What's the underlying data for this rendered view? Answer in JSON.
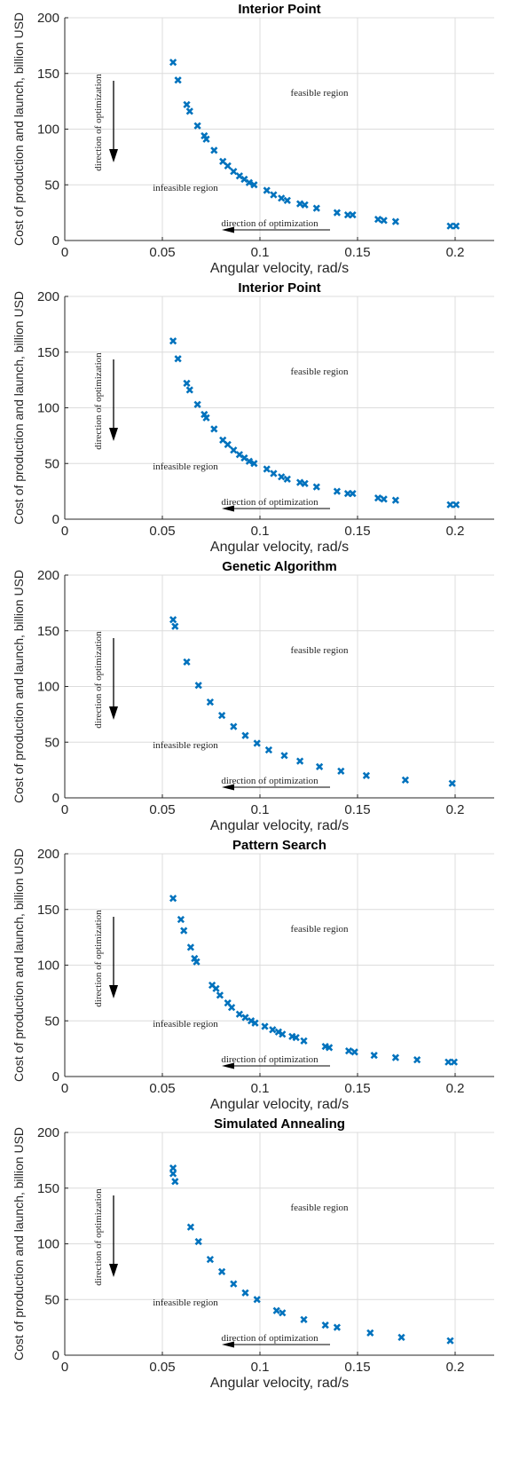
{
  "colors": {
    "marker": "#0072BD",
    "grid": "#dcdcdc",
    "axis": "#262626"
  },
  "chart_data": [
    {
      "type": "scatter",
      "title": "Interior Point",
      "xlabel": "Angular velocity, rad/s",
      "ylabel": "Cost of production and launch, billion USD",
      "xlim": [
        0,
        0.22
      ],
      "ylim": [
        0,
        200
      ],
      "xticks": [
        "0",
        "0.05",
        "0.1",
        "0.15",
        "0.2"
      ],
      "yticks": [
        "0",
        "50",
        "100",
        "150",
        "200"
      ],
      "grid": true,
      "marker": "x",
      "annotations": [
        "feasible region",
        "infeasible region",
        "direction of optimization",
        "direction of optimization"
      ],
      "points": [
        [
          0.0555,
          160
        ],
        [
          0.058,
          144
        ],
        [
          0.0625,
          122
        ],
        [
          0.064,
          116
        ],
        [
          0.068,
          103
        ],
        [
          0.0715,
          94
        ],
        [
          0.0725,
          91
        ],
        [
          0.0765,
          81
        ],
        [
          0.081,
          71
        ],
        [
          0.0835,
          67
        ],
        [
          0.0865,
          62
        ],
        [
          0.0895,
          58
        ],
        [
          0.092,
          55
        ],
        [
          0.0945,
          52
        ],
        [
          0.097,
          50
        ],
        [
          0.1035,
          45
        ],
        [
          0.107,
          41
        ],
        [
          0.111,
          38
        ],
        [
          0.114,
          36
        ],
        [
          0.1205,
          33
        ],
        [
          0.123,
          32
        ],
        [
          0.129,
          29
        ],
        [
          0.1395,
          25
        ],
        [
          0.145,
          23
        ],
        [
          0.1475,
          23
        ],
        [
          0.1605,
          19
        ],
        [
          0.1635,
          18
        ],
        [
          0.1695,
          17
        ],
        [
          0.1975,
          13
        ],
        [
          0.2005,
          13
        ]
      ]
    },
    {
      "type": "scatter",
      "title": "Interior Point",
      "xlabel": "Angular velocity, rad/s",
      "ylabel": "Cost of production and launch, billion USD",
      "xlim": [
        0,
        0.22
      ],
      "ylim": [
        0,
        200
      ],
      "xticks": [
        "0",
        "0.05",
        "0.1",
        "0.15",
        "0.2"
      ],
      "yticks": [
        "0",
        "50",
        "100",
        "150",
        "200"
      ],
      "grid": true,
      "marker": "x",
      "annotations": [
        "feasible region",
        "infeasible region",
        "direction of optimization",
        "direction of optimization"
      ],
      "points": [
        [
          0.0555,
          160
        ],
        [
          0.058,
          144
        ],
        [
          0.0625,
          122
        ],
        [
          0.064,
          116
        ],
        [
          0.068,
          103
        ],
        [
          0.0715,
          94
        ],
        [
          0.0725,
          91
        ],
        [
          0.0765,
          81
        ],
        [
          0.081,
          71
        ],
        [
          0.0835,
          67
        ],
        [
          0.0865,
          62
        ],
        [
          0.0895,
          58
        ],
        [
          0.092,
          55
        ],
        [
          0.0945,
          52
        ],
        [
          0.097,
          50
        ],
        [
          0.1035,
          45
        ],
        [
          0.107,
          41
        ],
        [
          0.111,
          38
        ],
        [
          0.114,
          36
        ],
        [
          0.1205,
          33
        ],
        [
          0.123,
          32
        ],
        [
          0.129,
          29
        ],
        [
          0.1395,
          25
        ],
        [
          0.145,
          23
        ],
        [
          0.1475,
          23
        ],
        [
          0.1605,
          19
        ],
        [
          0.1635,
          18
        ],
        [
          0.1695,
          17
        ],
        [
          0.1975,
          13
        ],
        [
          0.2005,
          13
        ]
      ]
    },
    {
      "type": "scatter",
      "title": "Genetic Algorithm",
      "xlabel": "Angular velocity, rad/s",
      "ylabel": "Cost of production and launch, billion USD",
      "xlim": [
        0,
        0.22
      ],
      "ylim": [
        0,
        200
      ],
      "xticks": [
        "0",
        "0.05",
        "0.1",
        "0.15",
        "0.2"
      ],
      "yticks": [
        "0",
        "50",
        "100",
        "150",
        "200"
      ],
      "grid": true,
      "marker": "x",
      "annotations": [
        "feasible region",
        "infeasible region",
        "direction of optimization",
        "direction of optimization"
      ],
      "points": [
        [
          0.0555,
          160
        ],
        [
          0.0565,
          154
        ],
        [
          0.0625,
          122
        ],
        [
          0.0685,
          101
        ],
        [
          0.0745,
          86
        ],
        [
          0.0805,
          74
        ],
        [
          0.0865,
          64
        ],
        [
          0.0925,
          56
        ],
        [
          0.0985,
          49
        ],
        [
          0.1045,
          43
        ],
        [
          0.1125,
          38
        ],
        [
          0.1205,
          33
        ],
        [
          0.1305,
          28
        ],
        [
          0.1415,
          24
        ],
        [
          0.1545,
          20
        ],
        [
          0.1745,
          16
        ],
        [
          0.1985,
          13
        ]
      ]
    },
    {
      "type": "scatter",
      "title": "Pattern Search",
      "xlabel": "Angular velocity, rad/s",
      "ylabel": "Cost of production and launch, billion USD",
      "xlim": [
        0,
        0.22
      ],
      "ylim": [
        0,
        200
      ],
      "xticks": [
        "0",
        "0.05",
        "0.1",
        "0.15",
        "0.2"
      ],
      "yticks": [
        "0",
        "50",
        "100",
        "150",
        "200"
      ],
      "grid": true,
      "marker": "x",
      "annotations": [
        "feasible region",
        "infeasible region",
        "direction of optimization",
        "direction of optimization"
      ],
      "points": [
        [
          0.0555,
          160
        ],
        [
          0.0595,
          141
        ],
        [
          0.061,
          131
        ],
        [
          0.0645,
          116
        ],
        [
          0.0665,
          106
        ],
        [
          0.0675,
          103
        ],
        [
          0.0755,
          82
        ],
        [
          0.0775,
          79
        ],
        [
          0.0795,
          73
        ],
        [
          0.0835,
          66
        ],
        [
          0.0855,
          62
        ],
        [
          0.0895,
          56
        ],
        [
          0.0925,
          53
        ],
        [
          0.0955,
          50
        ],
        [
          0.0975,
          48
        ],
        [
          0.1025,
          45
        ],
        [
          0.1065,
          42
        ],
        [
          0.1095,
          40
        ],
        [
          0.1115,
          38
        ],
        [
          0.1165,
          36
        ],
        [
          0.1185,
          35
        ],
        [
          0.1225,
          32
        ],
        [
          0.1335,
          27
        ],
        [
          0.1355,
          26
        ],
        [
          0.1455,
          23
        ],
        [
          0.1485,
          22
        ],
        [
          0.1585,
          19
        ],
        [
          0.1695,
          17
        ],
        [
          0.1805,
          15
        ],
        [
          0.1965,
          13
        ],
        [
          0.1995,
          13
        ]
      ]
    },
    {
      "type": "scatter",
      "title": "Simulated Annealing",
      "xlabel": "Angular velocity, rad/s",
      "ylabel": "Cost of production and launch, billion USD",
      "xlim": [
        0,
        0.22
      ],
      "ylim": [
        0,
        200
      ],
      "xticks": [
        "0",
        "0.05",
        "0.1",
        "0.15",
        "0.2"
      ],
      "yticks": [
        "0",
        "50",
        "100",
        "150",
        "200"
      ],
      "grid": true,
      "marker": "x",
      "annotations": [
        "feasible region",
        "infeasible region",
        "direction of optimization",
        "direction of optimization"
      ],
      "points": [
        [
          0.0555,
          168
        ],
        [
          0.0555,
          163
        ],
        [
          0.0565,
          156
        ],
        [
          0.0645,
          115
        ],
        [
          0.0685,
          102
        ],
        [
          0.0745,
          86
        ],
        [
          0.0805,
          75
        ],
        [
          0.0865,
          64
        ],
        [
          0.0925,
          56
        ],
        [
          0.0985,
          50
        ],
        [
          0.1085,
          40
        ],
        [
          0.1115,
          38
        ],
        [
          0.1225,
          32
        ],
        [
          0.1335,
          27
        ],
        [
          0.1395,
          25
        ],
        [
          0.1565,
          20
        ],
        [
          0.1725,
          16
        ],
        [
          0.1975,
          13
        ]
      ]
    }
  ]
}
